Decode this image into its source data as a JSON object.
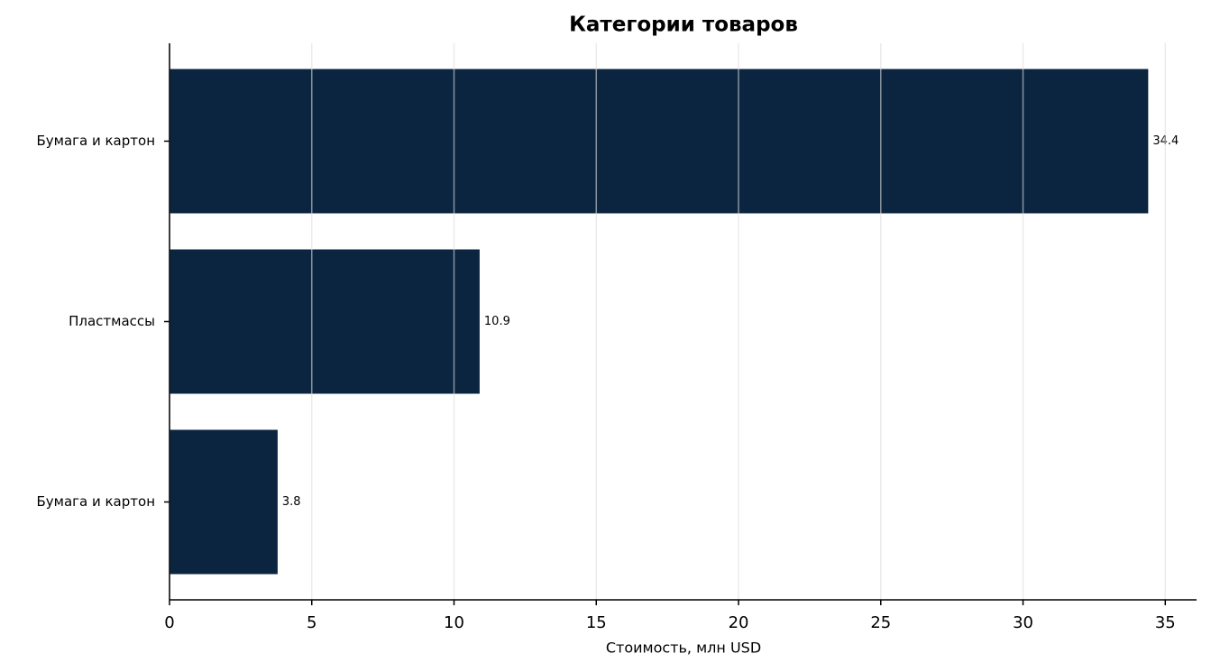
{
  "chart_data": {
    "type": "barh",
    "title": "Категории товаров",
    "x_label": "Стоимость, млн USD",
    "categories": [
      "Бумага и картон",
      "Пластмассы",
      "Бумага и картон"
    ],
    "values": [
      34.4,
      10.9,
      3.8
    ],
    "color": "#0b2540",
    "xlim": [
      0,
      36.1
    ],
    "xticks": [
      0,
      5,
      10,
      15,
      20,
      25,
      30,
      35
    ],
    "grid": true
  }
}
